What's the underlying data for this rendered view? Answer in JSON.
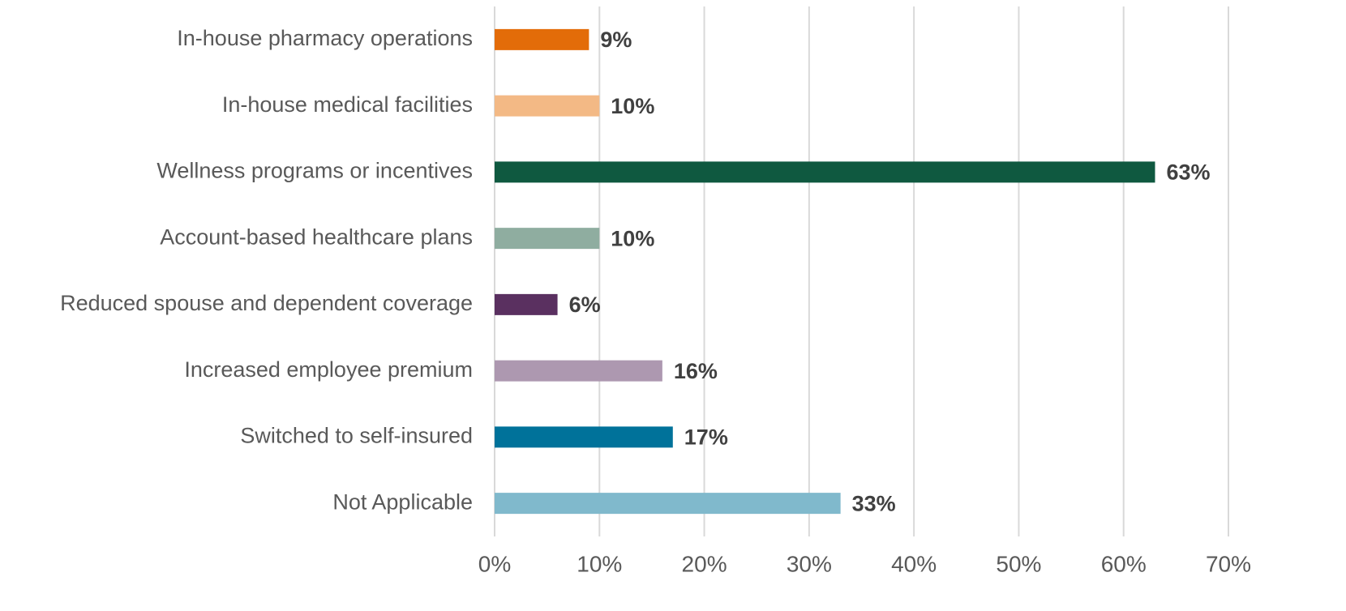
{
  "chart_data": {
    "type": "hbar",
    "categories": [
      "In-house pharmacy operations",
      "In-house medical facilities",
      "Wellness programs or incentives",
      "Account-based healthcare plans",
      "Reduced spouse and dependent coverage",
      "Increased employee premium",
      "Switched to self-insured",
      "Not Applicable"
    ],
    "values": [
      9,
      10,
      63,
      10,
      6,
      16,
      17,
      33
    ],
    "value_labels": [
      "9%",
      "10%",
      "63%",
      "10%",
      "6%",
      "16%",
      "17%",
      "33%"
    ],
    "colors": [
      "#e36c09",
      "#f3b985",
      "#0f5940",
      "#8fada0",
      "#5a3060",
      "#ad98b0",
      "#00729a",
      "#80b9cc"
    ],
    "xlim": [
      0,
      70
    ],
    "xticks": [
      {
        "value": 0,
        "label": "0%"
      },
      {
        "value": 10,
        "label": "10%"
      },
      {
        "value": 20,
        "label": "20%"
      },
      {
        "value": 30,
        "label": "30%"
      },
      {
        "value": 40,
        "label": "40%"
      },
      {
        "value": 50,
        "label": "50%"
      },
      {
        "value": 60,
        "label": "60%"
      },
      {
        "value": 70,
        "label": "70%"
      }
    ],
    "grid": true
  }
}
